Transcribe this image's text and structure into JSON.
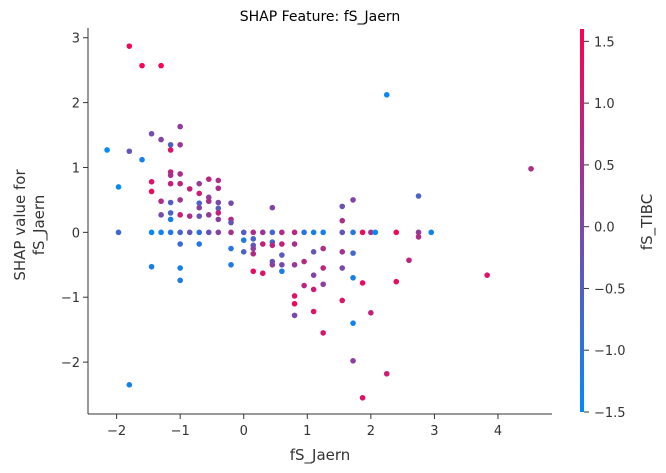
{
  "chart_data": {
    "type": "scatter",
    "title": "SHAP Feature: fS_Jaern",
    "xlabel": "fS_Jaern",
    "ylabel": [
      "SHAP value for",
      "fS_Jaern"
    ],
    "xlim": [
      -2.45,
      4.85
    ],
    "ylim": [
      -2.8,
      3.15
    ],
    "xticks": [
      -2,
      -1,
      0,
      1,
      2,
      3,
      4
    ],
    "yticks": [
      -2,
      -1,
      0,
      1,
      2,
      3
    ],
    "colorbar": {
      "label": "fS_TIBC",
      "range": [
        -1.5,
        1.6
      ],
      "ticks": [
        -1.5,
        -1.0,
        -0.5,
        0.0,
        0.5,
        1.0,
        1.5
      ],
      "tick_labels": [
        "−1.5",
        "−1.0",
        "−0.5",
        "0.0",
        "0.5",
        "1.0",
        "1.5"
      ],
      "colors": [
        "#008bfb",
        "#ff0051"
      ]
    },
    "grid": false,
    "points": [
      {
        "x": -2.15,
        "y": 1.27,
        "c": -1.5
      },
      {
        "x": -1.97,
        "y": 0.7,
        "c": -1.4
      },
      {
        "x": -1.97,
        "y": 0.0,
        "c": -0.7
      },
      {
        "x": -1.8,
        "y": 2.87,
        "c": 1.4
      },
      {
        "x": -1.8,
        "y": 1.25,
        "c": -0.3
      },
      {
        "x": -1.8,
        "y": -2.35,
        "c": -1.3
      },
      {
        "x": -1.6,
        "y": 2.57,
        "c": 1.5
      },
      {
        "x": -1.6,
        "y": 1.12,
        "c": -1.3
      },
      {
        "x": -1.45,
        "y": 1.52,
        "c": -0.1
      },
      {
        "x": -1.45,
        "y": 0.78,
        "c": 1.2
      },
      {
        "x": -1.45,
        "y": 0.63,
        "c": 1.4
      },
      {
        "x": -1.45,
        "y": 0.0,
        "c": -1.4
      },
      {
        "x": -1.45,
        "y": -0.53,
        "c": -1.2
      },
      {
        "x": -1.3,
        "y": 2.57,
        "c": 1.5
      },
      {
        "x": -1.3,
        "y": 1.43,
        "c": 0.1
      },
      {
        "x": -1.3,
        "y": 0.48,
        "c": 0.6
      },
      {
        "x": -1.3,
        "y": 0.27,
        "c": -0.1
      },
      {
        "x": -1.3,
        "y": 0.0,
        "c": -1.3
      },
      {
        "x": -1.15,
        "y": 1.35,
        "c": -0.5
      },
      {
        "x": -1.15,
        "y": 1.27,
        "c": 1.2
      },
      {
        "x": -1.15,
        "y": 0.93,
        "c": 0.8
      },
      {
        "x": -1.15,
        "y": 0.88,
        "c": 0.5
      },
      {
        "x": -1.15,
        "y": 0.75,
        "c": 1.0
      },
      {
        "x": -1.15,
        "y": 0.46,
        "c": -0.5
      },
      {
        "x": -1.15,
        "y": 0.3,
        "c": -0.6
      },
      {
        "x": -1.15,
        "y": 0.2,
        "c": -1.2
      },
      {
        "x": -1.15,
        "y": 0.0,
        "c": -1.1
      },
      {
        "x": -1.0,
        "y": 1.63,
        "c": 0.3
      },
      {
        "x": -1.0,
        "y": 1.35,
        "c": 0.4
      },
      {
        "x": -1.0,
        "y": 0.9,
        "c": 0.6
      },
      {
        "x": -1.0,
        "y": 0.75,
        "c": 0.8
      },
      {
        "x": -1.0,
        "y": 0.5,
        "c": 0.4
      },
      {
        "x": -1.0,
        "y": 0.27,
        "c": 0.9
      },
      {
        "x": -1.0,
        "y": 0.0,
        "c": -0.6
      },
      {
        "x": -1.0,
        "y": -0.18,
        "c": -0.8
      },
      {
        "x": -1.0,
        "y": -0.55,
        "c": -1.3
      },
      {
        "x": -1.0,
        "y": -0.74,
        "c": -1.1
      },
      {
        "x": -0.85,
        "y": 0.67,
        "c": 0.9
      },
      {
        "x": -0.85,
        "y": 0.25,
        "c": 0.6
      },
      {
        "x": -0.85,
        "y": 0.0,
        "c": -0.3
      },
      {
        "x": -0.7,
        "y": 0.75,
        "c": 0.3
      },
      {
        "x": -0.7,
        "y": 0.6,
        "c": 1.0
      },
      {
        "x": -0.7,
        "y": 0.45,
        "c": -0.6
      },
      {
        "x": -0.7,
        "y": 0.38,
        "c": 0.1
      },
      {
        "x": -0.7,
        "y": 0.25,
        "c": -0.2
      },
      {
        "x": -0.7,
        "y": 0.0,
        "c": -0.9
      },
      {
        "x": -0.7,
        "y": -0.18,
        "c": -1.1
      },
      {
        "x": -0.55,
        "y": 0.82,
        "c": 0.8
      },
      {
        "x": -0.55,
        "y": 0.54,
        "c": 0.2
      },
      {
        "x": -0.55,
        "y": 0.48,
        "c": 0.5
      },
      {
        "x": -0.55,
        "y": 0.27,
        "c": 0.3
      },
      {
        "x": -0.55,
        "y": 0.0,
        "c": -0.2
      },
      {
        "x": -0.4,
        "y": 0.8,
        "c": 0.6
      },
      {
        "x": -0.4,
        "y": 0.68,
        "c": 0.7
      },
      {
        "x": -0.4,
        "y": 0.46,
        "c": 0.0
      },
      {
        "x": -0.4,
        "y": 0.37,
        "c": -0.4
      },
      {
        "x": -0.4,
        "y": 0.3,
        "c": 0.9
      },
      {
        "x": -0.4,
        "y": 0.2,
        "c": 0.2
      },
      {
        "x": -0.4,
        "y": 0.0,
        "c": 0.1
      },
      {
        "x": -0.2,
        "y": 0.45,
        "c": -0.1
      },
      {
        "x": -0.2,
        "y": 0.2,
        "c": 0.7
      },
      {
        "x": -0.2,
        "y": 0.15,
        "c": -0.3
      },
      {
        "x": -0.2,
        "y": 0.0,
        "c": 0.5
      },
      {
        "x": -0.2,
        "y": -0.25,
        "c": -1.0
      },
      {
        "x": -0.2,
        "y": -0.5,
        "c": -1.1
      },
      {
        "x": 0.0,
        "y": 0.0,
        "c": -0.5
      },
      {
        "x": 0.0,
        "y": -0.12,
        "c": -1.1
      },
      {
        "x": 0.0,
        "y": -0.3,
        "c": -0.6
      },
      {
        "x": 0.15,
        "y": 0.0,
        "c": 0.6
      },
      {
        "x": 0.15,
        "y": -0.1,
        "c": -0.6
      },
      {
        "x": 0.15,
        "y": -0.2,
        "c": -0.3
      },
      {
        "x": 0.15,
        "y": -0.25,
        "c": 0.2
      },
      {
        "x": 0.15,
        "y": -0.33,
        "c": 0.7
      },
      {
        "x": 0.15,
        "y": -0.6,
        "c": 1.3
      },
      {
        "x": 0.3,
        "y": 0.0,
        "c": 0.4
      },
      {
        "x": 0.3,
        "y": -0.18,
        "c": 0.9
      },
      {
        "x": 0.3,
        "y": -0.63,
        "c": 1.1
      },
      {
        "x": 0.45,
        "y": 0.38,
        "c": 0.1
      },
      {
        "x": 0.45,
        "y": 0.0,
        "c": -0.7
      },
      {
        "x": 0.45,
        "y": -0.15,
        "c": -0.6
      },
      {
        "x": 0.45,
        "y": -0.2,
        "c": 0.8
      },
      {
        "x": 0.45,
        "y": -0.45,
        "c": -0.3
      },
      {
        "x": 0.45,
        "y": -0.5,
        "c": 0.2
      },
      {
        "x": 0.6,
        "y": 0.0,
        "c": 0.6
      },
      {
        "x": 0.6,
        "y": -0.18,
        "c": 0.9
      },
      {
        "x": 0.6,
        "y": -0.35,
        "c": -0.4
      },
      {
        "x": 0.6,
        "y": -0.5,
        "c": -0.1
      },
      {
        "x": 0.6,
        "y": -0.6,
        "c": -1.2
      },
      {
        "x": 0.8,
        "y": 0.0,
        "c": 0.8
      },
      {
        "x": 0.8,
        "y": -0.18,
        "c": 0.5
      },
      {
        "x": 0.8,
        "y": -0.5,
        "c": 0.3
      },
      {
        "x": 0.8,
        "y": -0.98,
        "c": 1.2
      },
      {
        "x": 0.8,
        "y": -1.1,
        "c": 1.3
      },
      {
        "x": 0.8,
        "y": -1.28,
        "c": 0.0
      },
      {
        "x": 0.95,
        "y": 0.0,
        "c": -1.0
      },
      {
        "x": 0.95,
        "y": -0.45,
        "c": 0.7
      },
      {
        "x": 0.95,
        "y": -0.82,
        "c": 0.8
      },
      {
        "x": 1.1,
        "y": 0.0,
        "c": -1.2
      },
      {
        "x": 1.1,
        "y": -0.3,
        "c": -0.3
      },
      {
        "x": 1.1,
        "y": -0.66,
        "c": 0.1
      },
      {
        "x": 1.1,
        "y": -0.88,
        "c": 1.0
      },
      {
        "x": 1.1,
        "y": -1.22,
        "c": 1.2
      },
      {
        "x": 1.25,
        "y": 0.0,
        "c": -1.2
      },
      {
        "x": 1.25,
        "y": -0.25,
        "c": 0.6
      },
      {
        "x": 1.25,
        "y": -0.55,
        "c": 0.8
      },
      {
        "x": 1.25,
        "y": -0.8,
        "c": 0.2
      },
      {
        "x": 1.25,
        "y": -1.55,
        "c": 1.1
      },
      {
        "x": 1.55,
        "y": 0.4,
        "c": -0.2
      },
      {
        "x": 1.55,
        "y": 0.18,
        "c": 0.6
      },
      {
        "x": 1.55,
        "y": 0.0,
        "c": -0.3
      },
      {
        "x": 1.55,
        "y": -0.3,
        "c": 0.5
      },
      {
        "x": 1.55,
        "y": -0.55,
        "c": 0.0
      },
      {
        "x": 1.55,
        "y": -1.05,
        "c": 1.2
      },
      {
        "x": 1.72,
        "y": 0.5,
        "c": 0.1
      },
      {
        "x": 1.72,
        "y": 0.0,
        "c": -1.0
      },
      {
        "x": 1.72,
        "y": -0.32,
        "c": -0.7
      },
      {
        "x": 1.72,
        "y": -0.7,
        "c": -1.2
      },
      {
        "x": 1.72,
        "y": -1.4,
        "c": -1.3
      },
      {
        "x": 1.72,
        "y": -1.98,
        "c": 0.2
      },
      {
        "x": 1.87,
        "y": 0.0,
        "c": 1.3
      },
      {
        "x": 1.87,
        "y": -0.78,
        "c": 1.4
      },
      {
        "x": 1.87,
        "y": -2.55,
        "c": 1.2
      },
      {
        "x": 2.0,
        "y": 0.0,
        "c": 0.5
      },
      {
        "x": 2.0,
        "y": -1.24,
        "c": 0.9
      },
      {
        "x": 2.07,
        "y": 0.0,
        "c": -1.4
      },
      {
        "x": 2.25,
        "y": 2.12,
        "c": -1.4
      },
      {
        "x": 2.25,
        "y": -2.18,
        "c": 1.0
      },
      {
        "x": 2.4,
        "y": 0.0,
        "c": 1.4
      },
      {
        "x": 2.4,
        "y": -0.76,
        "c": 1.3
      },
      {
        "x": 2.6,
        "y": -0.43,
        "c": 0.8
      },
      {
        "x": 2.75,
        "y": 0.56,
        "c": -0.6
      },
      {
        "x": 2.75,
        "y": 0.0,
        "c": 0.3
      },
      {
        "x": 2.75,
        "y": -0.07,
        "c": 0.6
      },
      {
        "x": 2.95,
        "y": 0.0,
        "c": -1.3
      },
      {
        "x": 3.83,
        "y": -0.66,
        "c": 1.2
      },
      {
        "x": 4.52,
        "y": 0.98,
        "c": 0.6
      }
    ]
  }
}
